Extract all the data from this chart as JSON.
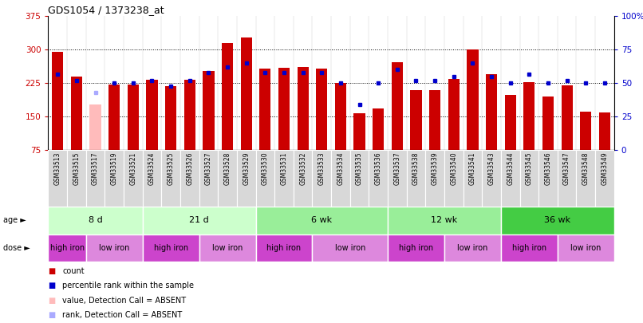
{
  "title": "GDS1054 / 1373238_at",
  "samples": [
    "GSM33513",
    "GSM33515",
    "GSM33517",
    "GSM33519",
    "GSM33521",
    "GSM33524",
    "GSM33525",
    "GSM33526",
    "GSM33527",
    "GSM33528",
    "GSM33529",
    "GSM33530",
    "GSM33531",
    "GSM33532",
    "GSM33533",
    "GSM33534",
    "GSM33535",
    "GSM33536",
    "GSM33537",
    "GSM33538",
    "GSM33539",
    "GSM33540",
    "GSM33541",
    "GSM33543",
    "GSM33544",
    "GSM33545",
    "GSM33546",
    "GSM33547",
    "GSM33548",
    "GSM33549"
  ],
  "counts": [
    295,
    240,
    178,
    222,
    222,
    232,
    218,
    232,
    253,
    315,
    328,
    258,
    260,
    262,
    258,
    225,
    158,
    168,
    272,
    210,
    210,
    235,
    300,
    245,
    198,
    228,
    195,
    220,
    162,
    160
  ],
  "absent": [
    false,
    false,
    true,
    false,
    false,
    false,
    false,
    false,
    false,
    false,
    false,
    false,
    false,
    false,
    false,
    false,
    false,
    false,
    false,
    false,
    false,
    false,
    false,
    false,
    false,
    false,
    false,
    false,
    false,
    false
  ],
  "percentile_ranks": [
    57,
    52,
    43,
    50,
    50,
    52,
    48,
    52,
    58,
    62,
    65,
    58,
    58,
    58,
    58,
    50,
    34,
    50,
    60,
    52,
    52,
    55,
    65,
    55,
    50,
    57,
    50,
    52,
    50,
    50
  ],
  "absent_rank": [
    false,
    false,
    true,
    false,
    false,
    false,
    false,
    false,
    false,
    false,
    false,
    false,
    false,
    false,
    false,
    false,
    false,
    false,
    false,
    false,
    false,
    false,
    false,
    false,
    false,
    false,
    false,
    false,
    false,
    false
  ],
  "ylim_left": [
    75,
    375
  ],
  "ylim_right": [
    0,
    100
  ],
  "yticks_left": [
    75,
    150,
    225,
    300,
    375
  ],
  "yticks_right": [
    0,
    25,
    50,
    75,
    100
  ],
  "bar_color": "#cc0000",
  "bar_color_absent": "#ffbbbb",
  "dot_color": "#0000cc",
  "dot_color_absent": "#aaaaff",
  "age_groups": [
    {
      "label": "8 d",
      "start": 0,
      "end": 5,
      "color": "#ccffcc"
    },
    {
      "label": "21 d",
      "start": 5,
      "end": 11,
      "color": "#ccffcc"
    },
    {
      "label": "6 wk",
      "start": 11,
      "end": 18,
      "color": "#99ee99"
    },
    {
      "label": "12 wk",
      "start": 18,
      "end": 24,
      "color": "#99ee99"
    },
    {
      "label": "36 wk",
      "start": 24,
      "end": 30,
      "color": "#44cc44"
    }
  ],
  "dose_groups": [
    {
      "label": "high iron",
      "start": 0,
      "end": 2,
      "color": "#cc44cc"
    },
    {
      "label": "low iron",
      "start": 2,
      "end": 5,
      "color": "#dd88dd"
    },
    {
      "label": "high iron",
      "start": 5,
      "end": 8,
      "color": "#cc44cc"
    },
    {
      "label": "low iron",
      "start": 8,
      "end": 11,
      "color": "#dd88dd"
    },
    {
      "label": "high iron",
      "start": 11,
      "end": 14,
      "color": "#cc44cc"
    },
    {
      "label": "low iron",
      "start": 14,
      "end": 18,
      "color": "#dd88dd"
    },
    {
      "label": "high iron",
      "start": 18,
      "end": 21,
      "color": "#cc44cc"
    },
    {
      "label": "low iron",
      "start": 21,
      "end": 24,
      "color": "#dd88dd"
    },
    {
      "label": "high iron",
      "start": 24,
      "end": 27,
      "color": "#cc44cc"
    },
    {
      "label": "low iron",
      "start": 27,
      "end": 30,
      "color": "#dd88dd"
    }
  ],
  "legend_items": [
    {
      "label": "count",
      "color": "#cc0000"
    },
    {
      "label": "percentile rank within the sample",
      "color": "#0000cc"
    },
    {
      "label": "value, Detection Call = ABSENT",
      "color": "#ffbbbb"
    },
    {
      "label": "rank, Detection Call = ABSENT",
      "color": "#aaaaff"
    }
  ]
}
